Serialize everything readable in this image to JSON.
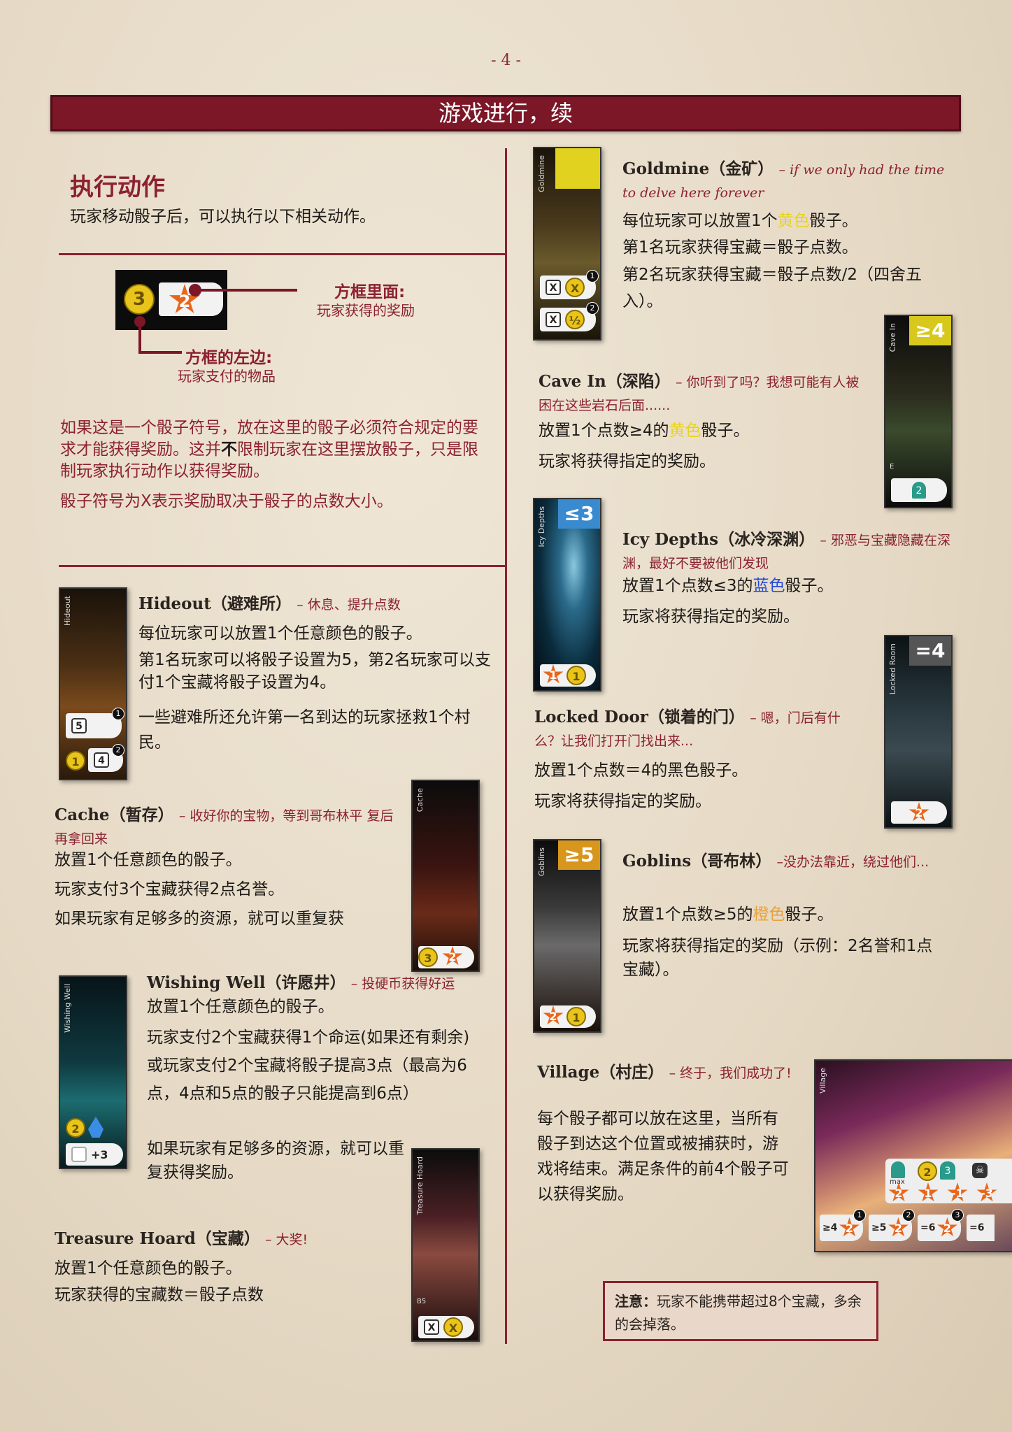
{
  "page_number": "- 4 -",
  "banner": "游戏进行，续",
  "section": {
    "title": "执行动作",
    "intro": "玩家移动骰子后，可以执行以下相关动作。",
    "inside_label": "方框里面:",
    "inside_desc": "玩家获得的奖励",
    "left_label": "方框的左边:",
    "left_desc": "玩家支付的物品",
    "example_coin": "3",
    "example_star": "2",
    "note1_a": "如果这是一个骰子符号，放在这里的骰子必须符合规定的要求才能获得奖励。这并",
    "note1_bold": "不",
    "note1_b": "限制玩家在这里摆放骰子，只是限制玩家执行动作以获得奖励。",
    "note2": "骰子符号为X表示奖励取决于骰子的点数大小。"
  },
  "hideout": {
    "card": "Hideout",
    "title_en": "Hideout",
    "title_cn": "（避难所）",
    "flavor": "– 休息、提升点数",
    "lines": [
      "每位玩家可以放置1个任意颜色的骰子。",
      "第1名玩家可以将骰子设置为5，第2名玩家可以支付1个宝藏将骰子设置为4。",
      "一些避难所还允许第一名到达的玩家拯救1个村民。"
    ],
    "r1_dice": "5",
    "r2_coin": "1",
    "r2_dice": "4",
    "rank1": "1",
    "rank2": "2"
  },
  "cache": {
    "card": "Cache",
    "title_en": "Cache",
    "title_cn": "（暂存）",
    "flavor": "– 收好你的宝物，等到哥布林平 复后再拿回来",
    "lines": [
      "放置1个任意颜色的骰子。",
      "玩家支付3个宝藏获得2点名誉。",
      "如果玩家有足够多的资源，就可以重复获"
    ],
    "coin": "3",
    "star": "2"
  },
  "wishing_well": {
    "card": "Wishing Well",
    "title_en": "Wishing Well",
    "title_cn": "（许愿井）",
    "flavor": "– 投硬币获得好运",
    "lines": [
      "放置1个任意颜色的骰子。",
      "玩家支付2个宝藏获得1个命运(如果还有剩余)或玩家支付2个宝藏将骰子提高3点（最高为6点，4点和5点的骰子只能提高到6点）",
      "如果玩家有足够多的资源，就可以重复获得奖励。"
    ],
    "coin": "2",
    "plus": "+3"
  },
  "treasure_hoard": {
    "card": "Treasure Hoard",
    "title_en": "Treasure Hoard",
    "title_cn": "（宝藏）",
    "flavor": "– 大奖!",
    "lines": [
      "放置1个任意颜色的骰子。",
      "玩家获得的宝藏数＝骰子点数"
    ],
    "code": "B5",
    "x": "X"
  },
  "goldmine": {
    "card": "Goldmine",
    "title_en": "Goldmine",
    "title_cn": "（金矿）",
    "flavor": "– if we only had the time to delve here forever",
    "line1_a": "每位玩家可以放置1个",
    "line1_color": "黄色",
    "line1_b": "骰子。",
    "line2": "第1名玩家获得宝藏＝骰子点数。",
    "line3": "第2名玩家获得宝藏＝骰子点数/2（四舍五入）。",
    "x": "X",
    "half": "½",
    "rank1": "1",
    "rank2": "2"
  },
  "cave_in": {
    "card": "Cave In",
    "req": "≥4",
    "title_en": "Cave In",
    "title_cn": "（深陷）",
    "flavor": "– 你听到了吗？我想可能有人被困在这些岩石后面......",
    "line1_a": "放置1个点数≥4的",
    "line1_color": "黄色",
    "line1_b": "骰子。",
    "line2": "玩家将获得指定的奖励。",
    "code": "E",
    "reward": "2"
  },
  "icy_depths": {
    "card": "Icy Depths",
    "req": "≤3",
    "title_en": "Icy Depths",
    "title_cn": "（冰冷深渊）",
    "flavor": "– 邪恶与宝藏隐藏在深渊，最好不要被他们发现",
    "line1_a": "放置1个点数≤3的",
    "line1_color": "蓝色",
    "line1_b": "骰子。",
    "line2": "玩家将获得指定的奖励。",
    "star": "1",
    "coin": "1"
  },
  "locked_door": {
    "card": "Locked Room",
    "req": "=4",
    "title_en": "Locked Door",
    "title_cn": "（锁着的门）",
    "flavor": "– 嗯，门后有什么？让我们打开门找出来...",
    "line1": "放置1个点数＝4的黑色骰子。",
    "line2": "玩家将获得指定的奖励。",
    "star": "2"
  },
  "goblins": {
    "card": "Goblins",
    "req": "≥5",
    "title_en": "Goblins",
    "title_cn": "（哥布林）",
    "flavor": "–没办法靠近，绕过他们...",
    "line1_a": "放置1个点数≥5的",
    "line1_color": "橙色",
    "line1_b": "骰子。",
    "line2": "玩家将获得指定的奖励（示例：2名誉和1点宝藏）。",
    "star": "2",
    "coin": "1"
  },
  "village": {
    "card": "Village",
    "title_en": "Village",
    "title_cn": "（村庄）",
    "flavor": "– 终于，我们成功了!",
    "text": "每个骰子都可以放在这里，当所有骰子到达这个位置或被捕获时，游戏将结束。满足条件的前4个骰子可以获得奖励。",
    "max": "max",
    "coin": "2",
    "villager": "3",
    "r_star1": "2",
    "r_star2": "1",
    "r_star3": "-1",
    "r_star4": "-3",
    "c1": "≥4",
    "c1s": "2",
    "c2": "≥5",
    "c2s": "2",
    "c3": "=6",
    "c3s": "2",
    "c4": "=6",
    "rank1": "1",
    "rank2": "2",
    "rank3": "3"
  },
  "note": {
    "label": "注意：",
    "text": "玩家不能携带超过8个宝藏，多余的会掉落。"
  },
  "colors": {
    "accent": "#7c1728",
    "yellow": "#e8d31e",
    "blue": "#2348d8",
    "orange": "#e8a23c"
  }
}
